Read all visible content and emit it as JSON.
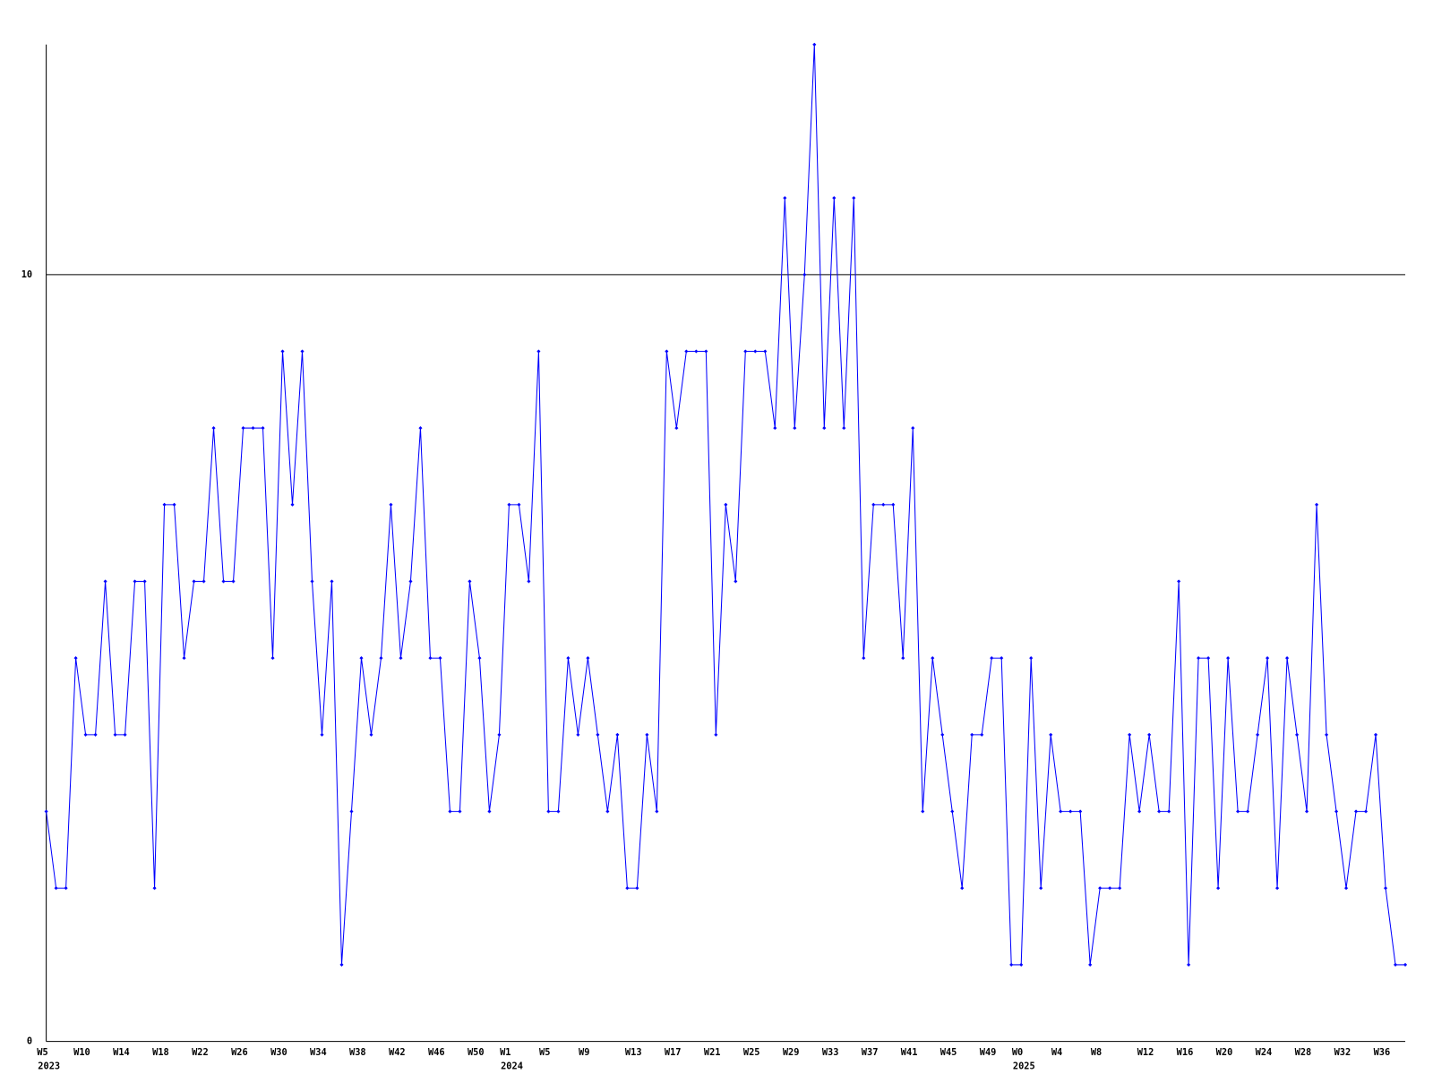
{
  "chart_data": {
    "type": "line",
    "categories": [
      "W5",
      null,
      null,
      null,
      "W10",
      null,
      null,
      null,
      "W14",
      null,
      null,
      null,
      "W18",
      null,
      null,
      null,
      "W22",
      null,
      null,
      null,
      "W26",
      null,
      null,
      null,
      "W30",
      null,
      null,
      null,
      "W34",
      null,
      null,
      null,
      "W38",
      null,
      null,
      null,
      "W42",
      null,
      null,
      null,
      "W46",
      null,
      null,
      null,
      "W50",
      null,
      null,
      "W1",
      null,
      null,
      null,
      "W5",
      null,
      null,
      null,
      "W9",
      null,
      null,
      null,
      null,
      "W13",
      null,
      null,
      null,
      "W17",
      null,
      null,
      null,
      "W21",
      null,
      null,
      null,
      "W25",
      null,
      null,
      null,
      "W29",
      null,
      null,
      null,
      "W33",
      null,
      null,
      null,
      "W37",
      null,
      null,
      null,
      "W41",
      null,
      null,
      null,
      "W45",
      null,
      null,
      null,
      "W49",
      null,
      null,
      "W0",
      null,
      null,
      null,
      "W4",
      null,
      null,
      null,
      "W8",
      null,
      null,
      null,
      null,
      "W12",
      null,
      null,
      null,
      "W16",
      null,
      null,
      null,
      "W20",
      null,
      null,
      null,
      "W24",
      null,
      null,
      null,
      "W28",
      null,
      null,
      null,
      "W32",
      null,
      null,
      null,
      "W36",
      null,
      null
    ],
    "category_years": [
      "2023",
      null,
      null,
      null,
      null,
      null,
      null,
      null,
      null,
      null,
      null,
      null,
      null,
      null,
      null,
      null,
      null,
      null,
      null,
      null,
      null,
      null,
      null,
      null,
      null,
      null,
      null,
      null,
      null,
      null,
      null,
      null,
      null,
      null,
      null,
      null,
      null,
      null,
      null,
      null,
      null,
      null,
      null,
      null,
      null,
      null,
      null,
      "2024",
      null,
      null,
      null,
      null,
      null,
      null,
      null,
      null,
      null,
      null,
      null,
      null,
      null,
      null,
      null,
      null,
      null,
      null,
      null,
      null,
      null,
      null,
      null,
      null,
      null,
      null,
      null,
      null,
      null,
      null,
      null,
      null,
      null,
      null,
      null,
      null,
      null,
      null,
      null,
      null,
      null,
      null,
      null,
      null,
      null,
      null,
      null,
      null,
      null,
      null,
      null,
      "2025",
      null,
      null,
      null,
      null,
      null,
      null,
      null,
      null,
      null,
      null,
      null,
      null,
      null,
      null,
      null,
      null,
      null,
      null,
      null,
      null,
      null,
      null,
      null,
      null,
      null,
      null,
      null,
      null,
      null,
      null,
      null,
      null,
      null,
      null,
      null,
      null,
      null,
      null,
      null
    ],
    "series": [
      {
        "color": "#0000ff",
        "values": [
          3,
          2,
          2,
          5,
          4,
          4,
          6,
          4,
          4,
          6,
          6,
          2,
          7,
          7,
          5,
          6,
          6,
          8,
          6,
          6,
          8,
          8,
          8,
          5,
          9,
          7,
          9,
          6,
          4,
          6,
          1,
          3,
          5,
          4,
          5,
          7,
          5,
          6,
          8,
          5,
          5,
          3,
          3,
          6,
          5,
          3,
          4,
          7,
          7,
          6,
          9,
          3,
          3,
          5,
          4,
          5,
          4,
          3,
          4,
          2,
          2,
          4,
          3,
          9,
          8,
          9,
          9,
          9,
          4,
          7,
          6,
          9,
          9,
          9,
          8,
          11,
          8,
          10,
          13,
          8,
          11,
          8,
          11,
          5,
          7,
          7,
          7,
          5,
          8,
          3,
          5,
          4,
          3,
          2,
          4,
          4,
          5,
          5,
          1,
          1,
          5,
          2,
          4,
          3,
          3,
          3,
          1,
          2,
          2,
          2,
          4,
          3,
          4,
          3,
          3,
          6,
          1,
          5,
          5,
          2,
          5,
          3,
          3,
          4,
          5,
          2,
          5,
          4,
          3,
          7,
          4,
          3,
          2,
          3,
          3,
          4,
          2,
          1,
          1
        ]
      }
    ],
    "ylim": [
      0,
      13
    ],
    "yticks": [
      0,
      10
    ],
    "grid": true
  }
}
